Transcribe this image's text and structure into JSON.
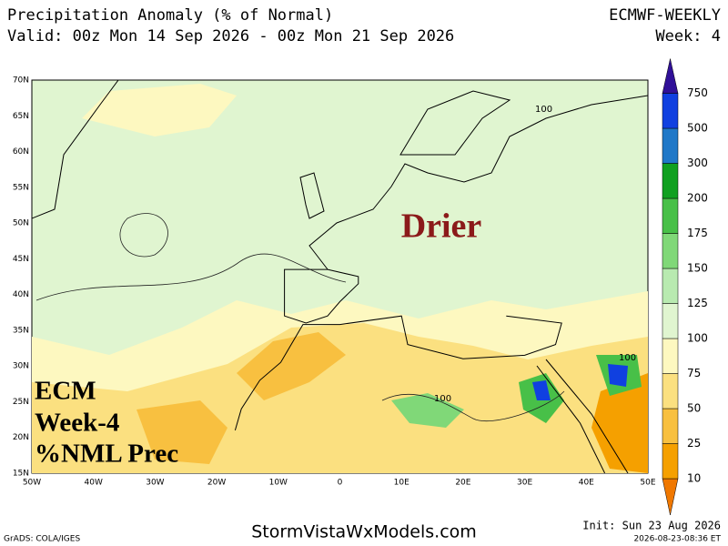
{
  "header": {
    "title": "Precipitation Anomaly (% of Normal)",
    "valid": "Valid: 00z Mon 14 Sep 2026 - 00z Mon 21 Sep 2026",
    "model": "ECMWF-WEEKLY",
    "week": "Week: 4"
  },
  "map": {
    "lat_labels": [
      "70N",
      "65N",
      "60N",
      "55N",
      "50N",
      "45N",
      "40N",
      "35N",
      "30N",
      "25N",
      "20N",
      "15N"
    ],
    "lon_labels": [
      "50W",
      "40W",
      "30W",
      "20W",
      "10W",
      "0",
      "10E",
      "20E",
      "30E",
      "40E",
      "50E"
    ],
    "annotations": {
      "main": "Drier",
      "line1": "ECM",
      "line2": "Week-4",
      "line3": "%NML Prec"
    },
    "contour_labels": [
      "100",
      "100",
      "100"
    ]
  },
  "colorbar": {
    "labels": [
      "10",
      "25",
      "50",
      "75",
      "100",
      "125",
      "150",
      "175",
      "200",
      "300",
      "500",
      "750"
    ],
    "colors": [
      "#f07800",
      "#f5a000",
      "#f8c040",
      "#fbe080",
      "#fdf8c0",
      "#e0f5d0",
      "#b8eab0",
      "#80d878",
      "#48c048",
      "#10a020",
      "#2078c8",
      "#1040e0",
      "#301098"
    ]
  },
  "footer": {
    "credit": "GrADS: COLA/IGES",
    "site": "StormVistaWxModels.com",
    "init": "Init: Sun 23 Aug 2026",
    "stamp": "2026-08-23-08:36 ET"
  }
}
